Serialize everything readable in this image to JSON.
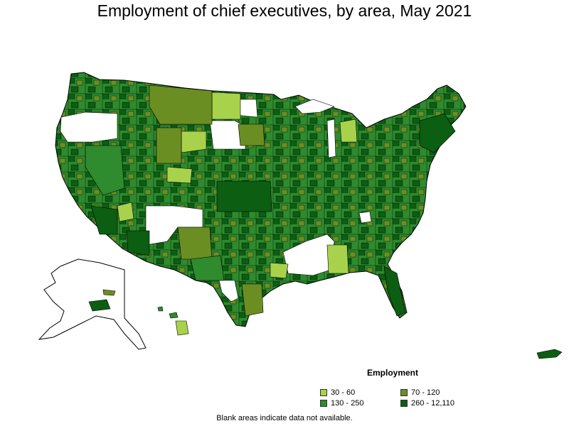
{
  "title": "Employment of chief executives, by area, May 2021",
  "legend": {
    "title": "Employment",
    "items": [
      {
        "label": "30 - 60",
        "color": "#a8d24c"
      },
      {
        "label": "70 - 120",
        "color": "#6b8e23"
      },
      {
        "label": "130 - 250",
        "color": "#2e8b2e"
      },
      {
        "label": "260 - 12,110",
        "color": "#0b5e12"
      }
    ]
  },
  "note": "Blank areas indicate data not available.",
  "colors": {
    "light": "#a8d24c",
    "olive": "#6b8e23",
    "medium": "#2e8b2e",
    "dark": "#0b5e12",
    "blank": "#ffffff",
    "border": "#000000"
  }
}
